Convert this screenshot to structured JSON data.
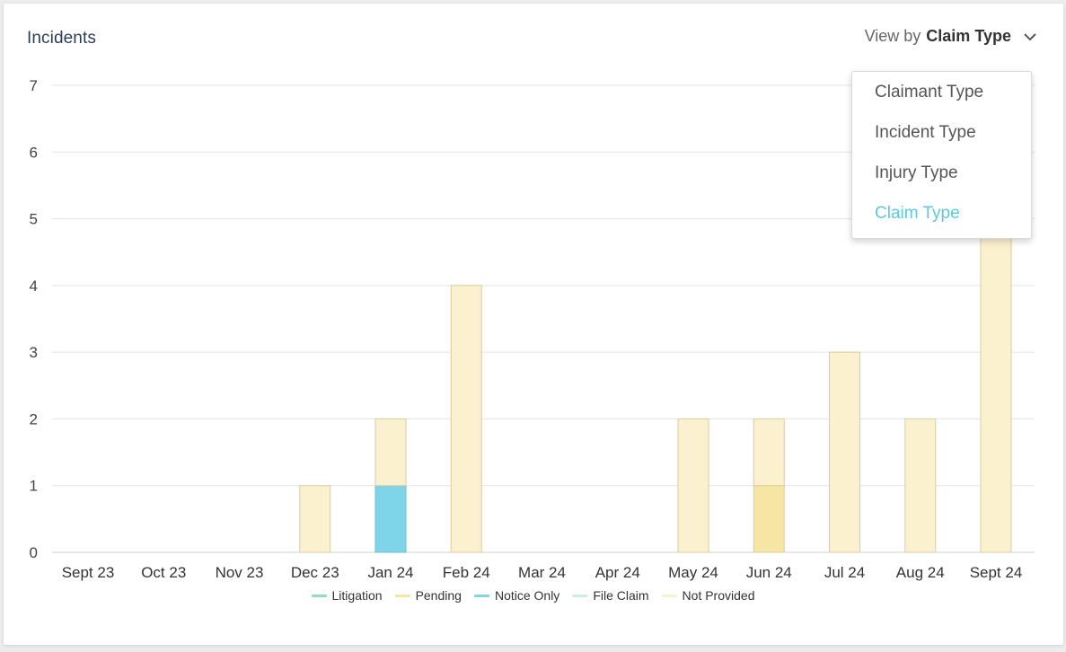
{
  "card": {
    "title": "Incidents",
    "view_by_label": "View by",
    "view_by_selected": "Claim Type"
  },
  "dropdown": {
    "items": [
      {
        "label": "Claimant Type",
        "active": false
      },
      {
        "label": "Incident Type",
        "active": false
      },
      {
        "label": "Injury Type",
        "active": false
      },
      {
        "label": "Claim Type",
        "active": true
      }
    ]
  },
  "chart_data": {
    "type": "bar",
    "stacked": true,
    "title": "",
    "xlabel": "",
    "ylabel": "",
    "ylim": [
      0,
      7
    ],
    "yticks": [
      0,
      1,
      2,
      3,
      4,
      5,
      6,
      7
    ],
    "grid": true,
    "legend_position": "bottom",
    "categories": [
      "Sept 23",
      "Oct 23",
      "Nov 23",
      "Dec 23",
      "Jan 24",
      "Feb 24",
      "Mar 24",
      "Apr 24",
      "May 24",
      "Jun 24",
      "Jul 24",
      "Aug 24",
      "Sept 24"
    ],
    "series": [
      {
        "name": "Litigation",
        "color": "#8fe0b4",
        "values": [
          0,
          0,
          0,
          0,
          0,
          0,
          0,
          0,
          0,
          0,
          0,
          0,
          0
        ]
      },
      {
        "name": "Pending",
        "color": "#f7e6a3",
        "values": [
          0,
          0,
          0,
          0,
          0,
          0,
          0,
          0,
          0,
          1,
          0,
          0,
          0
        ]
      },
      {
        "name": "Notice Only",
        "color": "#80d4ea",
        "values": [
          0,
          0,
          0,
          0,
          1,
          0,
          0,
          0,
          0,
          0,
          0,
          0,
          0
        ]
      },
      {
        "name": "File Claim",
        "color": "#c9f0dc",
        "values": [
          0,
          0,
          0,
          0,
          0,
          0,
          0,
          0,
          0,
          0,
          0,
          0,
          0
        ]
      },
      {
        "name": "Not Provided",
        "color": "#fbf1cf",
        "values": [
          0,
          0,
          0,
          1,
          1,
          4,
          0,
          0,
          2,
          1,
          3,
          2,
          6
        ]
      }
    ]
  }
}
